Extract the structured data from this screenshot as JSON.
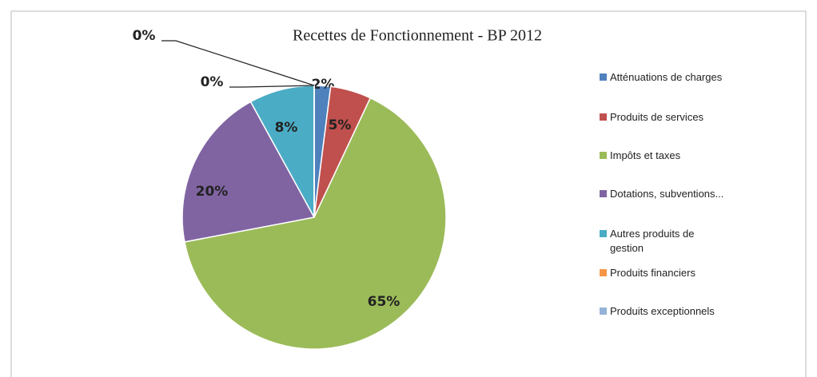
{
  "chart_data": {
    "type": "pie",
    "title": "Recettes de Fonctionnement - BP 2012",
    "categories": [
      "Atténuations de charges",
      "Produits de services",
      "Impôts et taxes",
      "Dotations, subventions...",
      "Autres produits de gestion",
      "Produits financiers",
      "Produits exceptionnels"
    ],
    "values": [
      2,
      5,
      65,
      20,
      8,
      0,
      0
    ],
    "value_labels": [
      "2%",
      "5%",
      "65%",
      "20%",
      "8%",
      "0%",
      "0%"
    ],
    "colors": [
      "#4f81bd",
      "#c0504d",
      "#9bbb59",
      "#8064a2",
      "#4bacc6",
      "#f79646",
      "#95b3d7"
    ],
    "legend": "right"
  }
}
